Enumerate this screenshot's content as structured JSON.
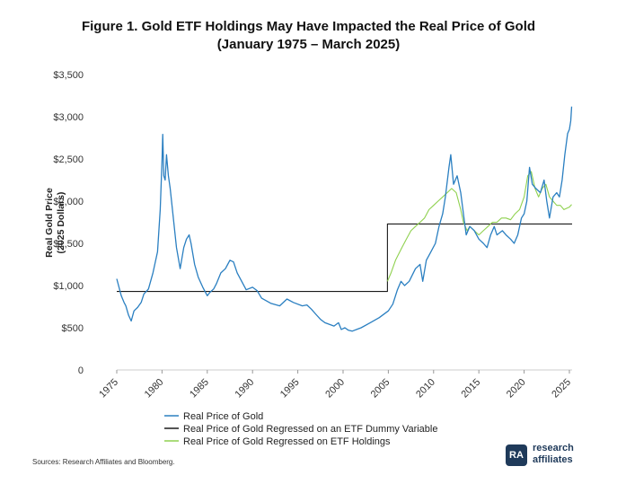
{
  "title_line1": "Figure 1. Gold ETF Holdings May Have Impacted the Real Price of Gold",
  "title_line2": "(January 1975 – March 2025)",
  "source": "Sources: Research Affiliates and Bloomberg.",
  "logo": {
    "line1": "research",
    "line2": "affiliates",
    "mark": "RA"
  },
  "colors": {
    "real": "#2a7fc1",
    "dummy": "#1a1a1a",
    "holdings": "#8fd14f",
    "axis": "#cccccc"
  },
  "chart_data": {
    "type": "line",
    "title": "Gold ETF Holdings May Have Impacted the Real Price of Gold",
    "ylabel_line1": "Real Gold Price",
    "ylabel_line2": "(2025 Dollars)",
    "xlim": [
      1975,
      2025.3
    ],
    "ylim": [
      0,
      3500
    ],
    "x_ticks": [
      1975,
      1980,
      1985,
      1990,
      1995,
      2000,
      2005,
      2010,
      2015,
      2020,
      2025
    ],
    "x_tick_labels": [
      "1975",
      "1980",
      "1985",
      "1990",
      "1995",
      "2000",
      "2005",
      "2010",
      "2015",
      "2020",
      "2025"
    ],
    "y_ticks": [
      0,
      500,
      1000,
      1500,
      2000,
      2500,
      3000,
      3500
    ],
    "y_tick_labels": [
      "0",
      "$500",
      "$1,000",
      "$1,500",
      "$2,000",
      "$2,500",
      "$3,000",
      "$3,500"
    ],
    "legend": [
      "Real Price of Gold",
      "Real Price of Gold Regressed on an ETF Dummy Variable",
      "Real Price of Gold Regressed on ETF Holdings"
    ],
    "series": [
      {
        "name": "Real Price of Gold",
        "x": [
          1975,
          1975.2,
          1975.5,
          1975.8,
          1976.0,
          1976.3,
          1976.6,
          1976.9,
          1977.3,
          1977.7,
          1978.0,
          1978.5,
          1979.0,
          1979.5,
          1979.8,
          1980.0,
          1980.08,
          1980.2,
          1980.35,
          1980.5,
          1980.7,
          1980.9,
          1981.2,
          1981.6,
          1982.0,
          1982.4,
          1982.7,
          1983.0,
          1983.2,
          1983.6,
          1984.0,
          1984.5,
          1985.0,
          1985.3,
          1985.7,
          1986.0,
          1986.5,
          1987.0,
          1987.5,
          1987.9,
          1988.3,
          1988.8,
          1989.3,
          1990.0,
          1990.5,
          1991.0,
          1992.0,
          1993.0,
          1993.8,
          1994.5,
          1995.5,
          1996.0,
          1996.5,
          1997.0,
          1997.5,
          1998.0,
          1999.0,
          1999.5,
          1999.8,
          2000.2,
          2000.6,
          2001.0,
          2001.5,
          2002.0,
          2003.0,
          2004.0,
          2005.0,
          2005.5,
          2006.0,
          2006.4,
          2006.8,
          2007.3,
          2008.0,
          2008.5,
          2008.8,
          2009.2,
          2009.7,
          2010.2,
          2010.6,
          2011.0,
          2011.3,
          2011.7,
          2011.9,
          2012.2,
          2012.6,
          2013.0,
          2013.3,
          2013.6,
          2014.0,
          2014.5,
          2015.0,
          2015.5,
          2015.9,
          2016.3,
          2016.7,
          2017.0,
          2017.6,
          2018.0,
          2018.5,
          2018.9,
          2019.3,
          2019.7,
          2020.0,
          2020.3,
          2020.6,
          2020.9,
          2021.3,
          2021.8,
          2022.2,
          2022.5,
          2022.8,
          2023.2,
          2023.6,
          2023.9,
          2024.2,
          2024.5,
          2024.8,
          2025.0,
          2025.15,
          2025.25
        ],
        "y": [
          1080,
          1000,
          880,
          800,
          760,
          650,
          580,
          700,
          740,
          800,
          900,
          960,
          1150,
          1400,
          1900,
          2480,
          2790,
          2300,
          2250,
          2550,
          2300,
          2150,
          1850,
          1450,
          1200,
          1450,
          1550,
          1600,
          1500,
          1250,
          1100,
          980,
          880,
          920,
          960,
          1020,
          1150,
          1200,
          1300,
          1280,
          1150,
          1050,
          950,
          980,
          940,
          850,
          790,
          760,
          840,
          800,
          760,
          770,
          720,
          660,
          600,
          560,
          520,
          560,
          480,
          500,
          470,
          460,
          480,
          500,
          560,
          620,
          700,
          780,
          950,
          1050,
          1000,
          1050,
          1200,
          1250,
          1050,
          1300,
          1400,
          1500,
          1700,
          1850,
          2050,
          2400,
          2550,
          2200,
          2300,
          2100,
          1850,
          1600,
          1700,
          1650,
          1550,
          1500,
          1450,
          1600,
          1700,
          1600,
          1650,
          1600,
          1550,
          1500,
          1600,
          1800,
          1850,
          2000,
          2400,
          2200,
          2150,
          2100,
          2250,
          2000,
          1800,
          2050,
          2100,
          2050,
          2250,
          2550,
          2800,
          2850,
          2950,
          3120
        ]
      },
      {
        "name": "Real Price of Gold Regressed on an ETF Dummy Variable",
        "x": [
          1975,
          2004.9,
          2004.9,
          2025.3
        ],
        "y": [
          930,
          930,
          1730,
          1730
        ]
      },
      {
        "name": "Real Price of Gold Regressed on ETF Holdings",
        "x": [
          2004.9,
          2005.3,
          2005.8,
          2006.5,
          2007.0,
          2007.5,
          2008.0,
          2008.5,
          2009.0,
          2009.5,
          2010.0,
          2010.5,
          2011.0,
          2011.5,
          2012.0,
          2012.5,
          2013.0,
          2013.3,
          2013.7,
          2014.0,
          2014.5,
          2015.0,
          2015.5,
          2016.0,
          2016.5,
          2017.0,
          2017.5,
          2018.0,
          2018.5,
          2019.0,
          2019.5,
          2020.0,
          2020.4,
          2020.8,
          2021.2,
          2021.6,
          2022.0,
          2022.4,
          2022.8,
          2023.2,
          2023.6,
          2024.0,
          2024.4,
          2024.8,
          2025.0,
          2025.25
        ],
        "y": [
          1050,
          1150,
          1300,
          1450,
          1550,
          1650,
          1700,
          1750,
          1800,
          1900,
          1950,
          2000,
          2050,
          2100,
          2150,
          2100,
          1900,
          1750,
          1650,
          1700,
          1650,
          1600,
          1650,
          1700,
          1750,
          1750,
          1800,
          1800,
          1780,
          1850,
          1900,
          2050,
          2300,
          2350,
          2150,
          2050,
          2150,
          2200,
          2050,
          2000,
          1950,
          1950,
          1900,
          1920,
          1930,
          1960
        ]
      }
    ]
  }
}
